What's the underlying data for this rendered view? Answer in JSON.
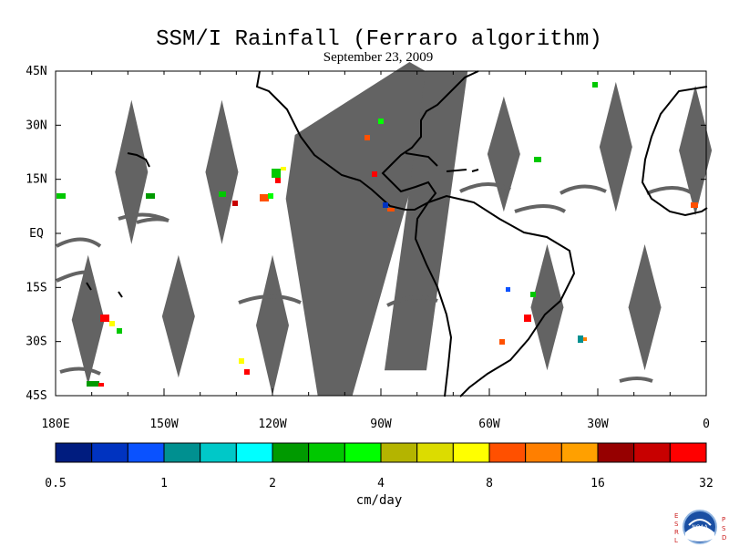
{
  "title": "SSM/I Rainfall (Ferraro algorithm)",
  "subtitle": "September 23, 2009",
  "map": {
    "lat_ticks": [
      "45N",
      "30N",
      "15N",
      "EQ",
      "15S",
      "30S",
      "45S"
    ],
    "lon_ticks": [
      "180E",
      "150W",
      "120W",
      "90W",
      "60W",
      "30W",
      "0"
    ],
    "lat_range": [
      -45,
      45
    ],
    "lon_range": [
      -180,
      0
    ],
    "no_data_color": "#636363",
    "land_outline_color": "#000000",
    "no_data_swaths": [
      {
        "type": "diamond",
        "lon_center": -159,
        "lat_top": 37,
        "lat_bottom": -3
      },
      {
        "type": "diamond",
        "lon_center": -134,
        "lat_top": 37,
        "lat_bottom": -3
      },
      {
        "type": "diamond",
        "lon_center": -56,
        "lat_top": 38,
        "lat_bottom": 6
      },
      {
        "type": "diamond",
        "lon_center": -25,
        "lat_top": 42,
        "lat_bottom": 6
      },
      {
        "type": "diamond",
        "lon_center": -3,
        "lat_top": 41,
        "lat_bottom": 5
      },
      {
        "type": "diamond",
        "lon_center": -171,
        "lat_top": -6,
        "lat_bottom": -42
      },
      {
        "type": "diamond",
        "lon_center": -146,
        "lat_top": -6,
        "lat_bottom": -40
      },
      {
        "type": "diamond",
        "lon_center": -120,
        "lat_top": -6,
        "lat_bottom": -45
      },
      {
        "type": "diamond",
        "lon_center": -44,
        "lat_top": -3,
        "lat_bottom": -38
      },
      {
        "type": "diamond",
        "lon_center": -17,
        "lat_top": -3,
        "lat_bottom": -38
      },
      {
        "type": "band",
        "lon_start": -110,
        "lon_end": -72,
        "lat_top": 45,
        "lat_bottom": -45
      },
      {
        "type": "band",
        "lon_start": -89,
        "lon_end": -66,
        "lat_top": 45,
        "lat_bottom": -38
      }
    ]
  },
  "colorbar": {
    "colors": [
      "#001c7f",
      "#0033c0",
      "#0a52ff",
      "#009090",
      "#00c8c8",
      "#00ffff",
      "#009a00",
      "#00c800",
      "#00ff00",
      "#b4b400",
      "#dcdc00",
      "#ffff00",
      "#ff5000",
      "#ff7f00",
      "#ffa000",
      "#960000",
      "#c80000",
      "#ff0000"
    ],
    "tick_labels": [
      "0.5",
      "1",
      "2",
      "4",
      "8",
      "16",
      "32"
    ],
    "units": "cm/day"
  },
  "logo": {
    "name": "noaa-logo",
    "left_letters": [
      "E",
      "S",
      "R",
      "L"
    ],
    "right_letters": [
      "P",
      "S",
      "D"
    ],
    "center_text": "NOAA"
  },
  "colors": {
    "frame": "#000000",
    "background": "#ffffff"
  }
}
